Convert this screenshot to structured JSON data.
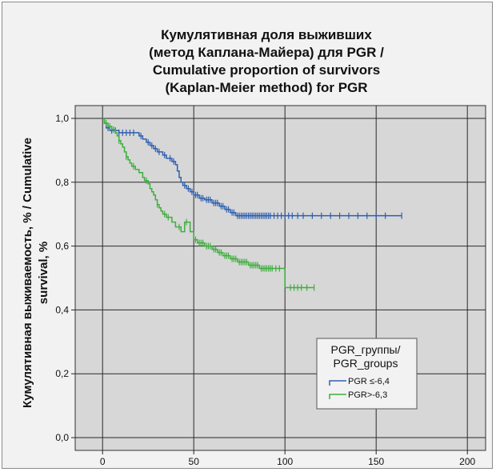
{
  "chart_data": {
    "type": "line",
    "title_lines": [
      "Кумулятивная доля выживших",
      "(метод Каплана-Майера) для PGR /",
      "Cumulative proportion of survivors",
      "(Kaplan-Meier method) for PGR"
    ],
    "ylabel_lines": [
      "Кумулятивная выживаемость, % / Cumulative",
      "survival, %"
    ],
    "xlabel": "",
    "x_ticks": [
      "0",
      "50",
      "100",
      "150",
      "200"
    ],
    "y_ticks": [
      "0,0",
      "0,2",
      "0,4",
      "0,6",
      "0,8",
      "1,0"
    ],
    "xlim": [
      -15,
      210
    ],
    "ylim": [
      -0.04,
      1.04
    ],
    "grid": true,
    "legend": {
      "title_lines": [
        "PGR_группы/",
        "PGR_groups"
      ],
      "placement": "bottom-right",
      "entries": [
        "PGR ≤-6,4",
        "PGR>-6,3"
      ]
    },
    "series": [
      {
        "name": "PGR ≤-6,4",
        "color": "#2e5fb0",
        "steps": [
          [
            0,
            1.0
          ],
          [
            1,
            0.985
          ],
          [
            2,
            0.97
          ],
          [
            4,
            0.962
          ],
          [
            9,
            0.955
          ],
          [
            18,
            0.955
          ],
          [
            20,
            0.945
          ],
          [
            22,
            0.935
          ],
          [
            24,
            0.925
          ],
          [
            26,
            0.915
          ],
          [
            28,
            0.905
          ],
          [
            30,
            0.895
          ],
          [
            33,
            0.885
          ],
          [
            35,
            0.875
          ],
          [
            38,
            0.865
          ],
          [
            40,
            0.855
          ],
          [
            41,
            0.835
          ],
          [
            42,
            0.815
          ],
          [
            43,
            0.8
          ],
          [
            44,
            0.79
          ],
          [
            46,
            0.78
          ],
          [
            48,
            0.77
          ],
          [
            50,
            0.76
          ],
          [
            53,
            0.75
          ],
          [
            56,
            0.745
          ],
          [
            60,
            0.735
          ],
          [
            64,
            0.725
          ],
          [
            67,
            0.715
          ],
          [
            70,
            0.705
          ],
          [
            73,
            0.695
          ],
          [
            164,
            0.695
          ]
        ],
        "censored": [
          3,
          5,
          7,
          9,
          11,
          13,
          15,
          17,
          21,
          25,
          27,
          29,
          31,
          34,
          37,
          39,
          45,
          47,
          49,
          51,
          52,
          54,
          55,
          57,
          58,
          59,
          61,
          62,
          63,
          65,
          66,
          68,
          69,
          71,
          72,
          74,
          75,
          76,
          77,
          78,
          79,
          80,
          81,
          82,
          83,
          84,
          85,
          86,
          87,
          88,
          89,
          90,
          91,
          92,
          94,
          96,
          98,
          100,
          102,
          104,
          107,
          110,
          115,
          120,
          125,
          130,
          135,
          140,
          145,
          150,
          155,
          164
        ]
      },
      {
        "name": "PGR>-6,3",
        "color": "#3fae3f",
        "steps": [
          [
            0,
            1.0
          ],
          [
            1,
            0.985
          ],
          [
            3,
            0.975
          ],
          [
            5,
            0.965
          ],
          [
            7,
            0.955
          ],
          [
            8,
            0.945
          ],
          [
            9,
            0.93
          ],
          [
            10,
            0.92
          ],
          [
            11,
            0.91
          ],
          [
            12,
            0.895
          ],
          [
            13,
            0.88
          ],
          [
            14,
            0.87
          ],
          [
            15,
            0.86
          ],
          [
            16,
            0.85
          ],
          [
            18,
            0.84
          ],
          [
            20,
            0.83
          ],
          [
            22,
            0.815
          ],
          [
            23,
            0.805
          ],
          [
            25,
            0.795
          ],
          [
            26,
            0.78
          ],
          [
            27,
            0.77
          ],
          [
            28,
            0.76
          ],
          [
            29,
            0.745
          ],
          [
            30,
            0.73
          ],
          [
            31,
            0.72
          ],
          [
            32,
            0.71
          ],
          [
            33,
            0.7
          ],
          [
            35,
            0.69
          ],
          [
            38,
            0.675
          ],
          [
            40,
            0.66
          ],
          [
            43,
            0.645
          ],
          [
            45,
            0.675
          ],
          [
            47,
            0.675
          ],
          [
            48,
            0.645
          ],
          [
            50,
            0.62
          ],
          [
            52,
            0.61
          ],
          [
            56,
            0.6
          ],
          [
            60,
            0.59
          ],
          [
            63,
            0.58
          ],
          [
            66,
            0.57
          ],
          [
            70,
            0.56
          ],
          [
            74,
            0.55
          ],
          [
            80,
            0.54
          ],
          [
            86,
            0.53
          ],
          [
            99,
            0.53
          ],
          [
            100,
            0.47
          ],
          [
            116,
            0.47
          ]
        ],
        "censored": [
          2,
          4,
          6,
          9,
          13,
          17,
          24,
          30,
          34,
          36,
          42,
          46,
          51,
          53,
          54,
          55,
          57,
          58,
          59,
          61,
          62,
          64,
          65,
          67,
          68,
          69,
          71,
          72,
          73,
          75,
          76,
          77,
          78,
          79,
          81,
          82,
          83,
          84,
          85,
          87,
          88,
          89,
          90,
          91,
          92,
          93,
          95,
          97,
          103,
          105,
          107,
          109,
          112,
          116
        ]
      }
    ]
  }
}
